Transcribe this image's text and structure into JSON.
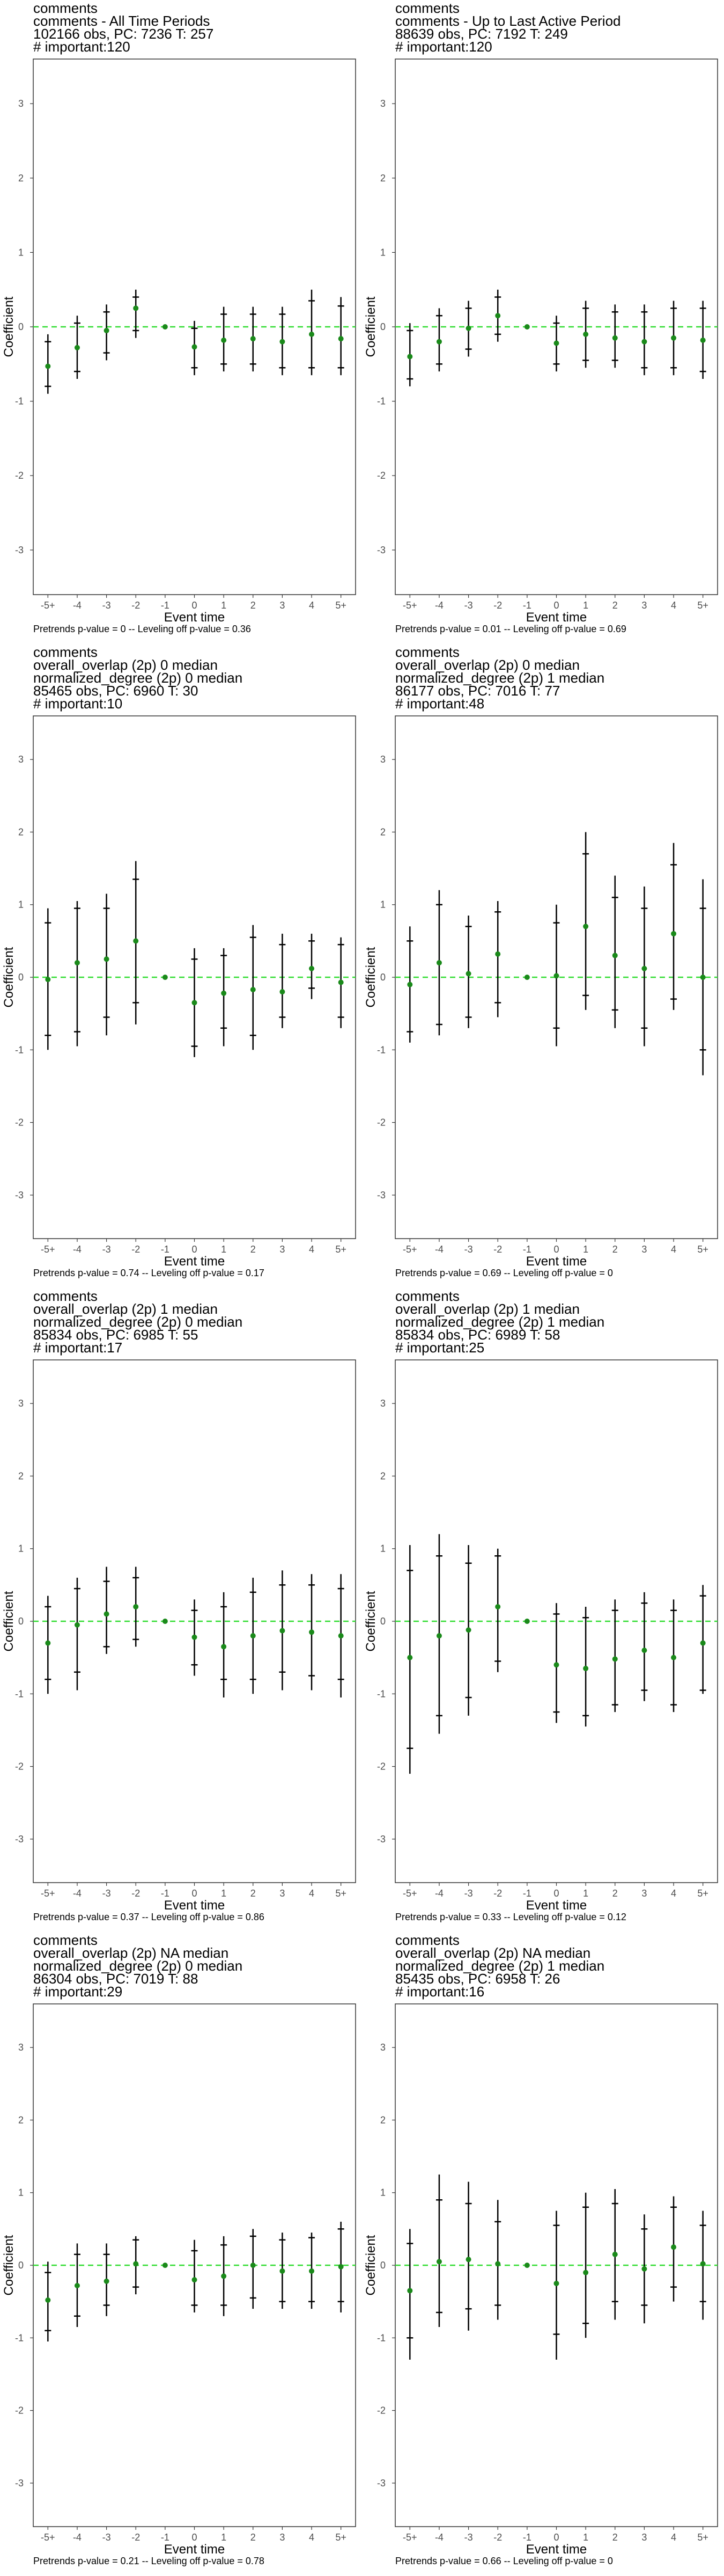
{
  "colors": {
    "point": "#1a8a1a",
    "zero_line": "#33dd33",
    "error_bar": "#000000",
    "panel_border": "#333333"
  },
  "chart_data": [
    {
      "type": "scatter",
      "title_lines": [
        "comments",
        "comments - All Time Periods",
        "102166 obs, PC: 7236 T: 257",
        "# important:120"
      ],
      "xlabel": "Event time",
      "ylabel": "Coefficient",
      "categories": [
        "-5+",
        "-4",
        "-3",
        "-2",
        "-1",
        "0",
        "1",
        "2",
        "3",
        "4",
        "5+"
      ],
      "yticks": [
        -3,
        -2,
        -1,
        0,
        1,
        2,
        3
      ],
      "ylim": [
        -3.6,
        3.6
      ],
      "reference_line": 0,
      "estimates": [
        -0.53,
        -0.28,
        -0.05,
        0.25,
        0.0,
        -0.27,
        -0.18,
        -0.16,
        -0.2,
        -0.1,
        -0.16
      ],
      "ci95_low": [
        -0.9,
        -0.7,
        -0.45,
        -0.15,
        0.0,
        -0.65,
        -0.6,
        -0.6,
        -0.65,
        -0.65,
        -0.65
      ],
      "ci95_high": [
        -0.1,
        0.15,
        0.3,
        0.5,
        0.0,
        0.08,
        0.27,
        0.27,
        0.27,
        0.5,
        0.4
      ],
      "ci90_low": [
        -0.8,
        -0.6,
        -0.35,
        -0.05,
        0.0,
        -0.55,
        -0.5,
        -0.5,
        -0.55,
        -0.55,
        -0.55
      ],
      "ci90_high": [
        -0.2,
        0.05,
        0.2,
        0.4,
        0.0,
        -0.02,
        0.17,
        0.17,
        0.17,
        0.35,
        0.28
      ],
      "caption": "Pretrends p-value = 0 -- Leveling off p-value = 0.36"
    },
    {
      "type": "scatter",
      "title_lines": [
        "comments",
        "comments - Up to Last Active Period",
        "88639 obs, PC: 7192 T: 249",
        "# important:120"
      ],
      "xlabel": "Event time",
      "ylabel": "Coefficient",
      "categories": [
        "-5+",
        "-4",
        "-3",
        "-2",
        "-1",
        "0",
        "1",
        "2",
        "3",
        "4",
        "5+"
      ],
      "yticks": [
        -3,
        -2,
        -1,
        0,
        1,
        2,
        3
      ],
      "ylim": [
        -3.6,
        3.6
      ],
      "reference_line": 0,
      "estimates": [
        -0.4,
        -0.2,
        -0.02,
        0.15,
        0.0,
        -0.22,
        -0.1,
        -0.15,
        -0.2,
        -0.15,
        -0.18
      ],
      "ci95_low": [
        -0.8,
        -0.6,
        -0.4,
        -0.2,
        0.0,
        -0.6,
        -0.55,
        -0.55,
        -0.65,
        -0.65,
        -0.7
      ],
      "ci95_high": [
        0.05,
        0.25,
        0.35,
        0.5,
        0.0,
        0.15,
        0.35,
        0.3,
        0.3,
        0.35,
        0.35
      ],
      "ci90_low": [
        -0.7,
        -0.5,
        -0.3,
        -0.1,
        0.0,
        -0.5,
        -0.45,
        -0.45,
        -0.55,
        -0.55,
        -0.6
      ],
      "ci90_high": [
        -0.05,
        0.15,
        0.25,
        0.4,
        0.0,
        0.05,
        0.25,
        0.2,
        0.2,
        0.25,
        0.25
      ],
      "caption": "Pretrends p-value = 0.01 -- Leveling off p-value = 0.69"
    },
    {
      "type": "scatter",
      "title_lines": [
        "comments",
        "overall_overlap (2p) 0 median",
        "normalized_degree (2p) 0 median",
        "85465 obs, PC: 6960 T: 30",
        "# important:10"
      ],
      "xlabel": "Event time",
      "ylabel": "Coefficient",
      "categories": [
        "-5+",
        "-4",
        "-3",
        "-2",
        "-1",
        "0",
        "1",
        "2",
        "3",
        "4",
        "5+"
      ],
      "yticks": [
        -3,
        -2,
        -1,
        0,
        1,
        2,
        3
      ],
      "ylim": [
        -3.6,
        3.6
      ],
      "reference_line": 0,
      "estimates": [
        -0.03,
        0.2,
        0.25,
        0.5,
        0.0,
        -0.35,
        -0.22,
        -0.17,
        -0.2,
        0.12,
        -0.07
      ],
      "ci95_low": [
        -1.0,
        -0.95,
        -0.8,
        -0.65,
        0.0,
        -1.1,
        -0.95,
        -1.0,
        -0.7,
        -0.3,
        -0.7
      ],
      "ci95_high": [
        0.95,
        1.05,
        1.15,
        1.6,
        0.0,
        0.4,
        0.4,
        0.72,
        0.6,
        0.6,
        0.55
      ],
      "ci90_low": [
        -0.8,
        -0.75,
        -0.55,
        -0.35,
        0.0,
        -0.95,
        -0.7,
        -0.8,
        -0.55,
        -0.15,
        -0.55
      ],
      "ci90_high": [
        0.75,
        0.95,
        0.95,
        1.35,
        0.0,
        0.25,
        0.3,
        0.55,
        0.45,
        0.5,
        0.45
      ],
      "caption": "Pretrends p-value = 0.74 -- Leveling off p-value = 0.17"
    },
    {
      "type": "scatter",
      "title_lines": [
        "comments",
        "overall_overlap (2p) 0 median",
        "normalized_degree (2p) 1 median",
        "86177 obs, PC: 7016 T: 77",
        "# important:48"
      ],
      "xlabel": "Event time",
      "ylabel": "Coefficient",
      "categories": [
        "-5+",
        "-4",
        "-3",
        "-2",
        "-1",
        "0",
        "1",
        "2",
        "3",
        "4",
        "5+"
      ],
      "yticks": [
        -3,
        -2,
        -1,
        0,
        1,
        2,
        3
      ],
      "ylim": [
        -3.6,
        3.6
      ],
      "reference_line": 0,
      "estimates": [
        -0.1,
        0.2,
        0.05,
        0.32,
        0.0,
        0.02,
        0.7,
        0.3,
        0.12,
        0.6,
        0.0
      ],
      "ci95_low": [
        -0.9,
        -0.8,
        -0.7,
        -0.55,
        0.0,
        -0.95,
        -0.45,
        -0.7,
        -0.95,
        -0.45,
        -1.35
      ],
      "ci95_high": [
        0.7,
        1.2,
        0.85,
        1.05,
        0.0,
        1.0,
        2.0,
        1.4,
        1.25,
        1.85,
        1.35
      ],
      "ci90_low": [
        -0.75,
        -0.65,
        -0.55,
        -0.35,
        0.0,
        -0.7,
        -0.25,
        -0.45,
        -0.7,
        -0.3,
        -1.0
      ],
      "ci90_high": [
        0.5,
        1.0,
        0.7,
        0.9,
        0.0,
        0.75,
        1.7,
        1.1,
        0.95,
        1.55,
        0.95
      ],
      "caption": "Pretrends p-value = 0.69 -- Leveling off p-value = 0"
    },
    {
      "type": "scatter",
      "title_lines": [
        "comments",
        "overall_overlap (2p) 1 median",
        "normalized_degree (2p) 0 median",
        "85834 obs, PC: 6985 T: 55",
        "# important:17"
      ],
      "xlabel": "Event time",
      "ylabel": "Coefficient",
      "categories": [
        "-5+",
        "-4",
        "-3",
        "-2",
        "-1",
        "0",
        "1",
        "2",
        "3",
        "4",
        "5+"
      ],
      "yticks": [
        -3,
        -2,
        -1,
        0,
        1,
        2,
        3
      ],
      "ylim": [
        -3.6,
        3.6
      ],
      "reference_line": 0,
      "estimates": [
        -0.3,
        -0.05,
        0.1,
        0.2,
        0.0,
        -0.22,
        -0.35,
        -0.2,
        -0.13,
        -0.15,
        -0.2
      ],
      "ci95_low": [
        -1.0,
        -0.95,
        -0.45,
        -0.35,
        0.0,
        -0.75,
        -1.05,
        -1.0,
        -0.95,
        -0.95,
        -1.05
      ],
      "ci95_high": [
        0.35,
        0.6,
        0.75,
        0.75,
        0.0,
        0.3,
        0.4,
        0.6,
        0.7,
        0.65,
        0.65
      ],
      "ci90_low": [
        -0.8,
        -0.7,
        -0.35,
        -0.25,
        0.0,
        -0.6,
        -0.8,
        -0.8,
        -0.7,
        -0.75,
        -0.8
      ],
      "ci90_high": [
        0.2,
        0.45,
        0.55,
        0.6,
        0.0,
        0.15,
        0.2,
        0.4,
        0.5,
        0.5,
        0.45
      ],
      "caption": "Pretrends p-value = 0.37 -- Leveling off p-value = 0.86"
    },
    {
      "type": "scatter",
      "title_lines": [
        "comments",
        "overall_overlap (2p) 1 median",
        "normalized_degree (2p) 1 median",
        "85834 obs, PC: 6989 T: 58",
        "# important:25"
      ],
      "xlabel": "Event time",
      "ylabel": "Coefficient",
      "categories": [
        "-5+",
        "-4",
        "-3",
        "-2",
        "-1",
        "0",
        "1",
        "2",
        "3",
        "4",
        "5+"
      ],
      "yticks": [
        -3,
        -2,
        -1,
        0,
        1,
        2,
        3
      ],
      "ylim": [
        -3.6,
        3.6
      ],
      "reference_line": 0,
      "estimates": [
        -0.5,
        -0.2,
        -0.12,
        0.2,
        0.0,
        -0.6,
        -0.65,
        -0.52,
        -0.4,
        -0.5,
        -0.3
      ],
      "ci95_low": [
        -2.1,
        -1.55,
        -1.3,
        -0.7,
        0.0,
        -1.4,
        -1.45,
        -1.25,
        -1.1,
        -1.25,
        -1.0
      ],
      "ci95_high": [
        1.05,
        1.2,
        1.05,
        1.0,
        0.0,
        0.25,
        0.2,
        0.3,
        0.4,
        0.3,
        0.5
      ],
      "ci90_low": [
        -1.75,
        -1.3,
        -1.05,
        -0.55,
        0.0,
        -1.25,
        -1.3,
        -1.15,
        -0.95,
        -1.15,
        -0.95
      ],
      "ci90_high": [
        0.7,
        0.9,
        0.8,
        0.9,
        0.0,
        0.1,
        0.05,
        0.15,
        0.25,
        0.15,
        0.35
      ],
      "caption": "Pretrends p-value = 0.33 -- Leveling off p-value = 0.12"
    },
    {
      "type": "scatter",
      "title_lines": [
        "comments",
        "overall_overlap (2p) NA median",
        "normalized_degree (2p) 0 median",
        "86304 obs, PC: 7019 T: 88",
        "# important:29"
      ],
      "xlabel": "Event time",
      "ylabel": "Coefficient",
      "categories": [
        "-5+",
        "-4",
        "-3",
        "-2",
        "-1",
        "0",
        "1",
        "2",
        "3",
        "4",
        "5+"
      ],
      "yticks": [
        -3,
        -2,
        -1,
        0,
        1,
        2,
        3
      ],
      "ylim": [
        -3.6,
        3.6
      ],
      "reference_line": 0,
      "estimates": [
        -0.48,
        -0.28,
        -0.22,
        0.02,
        0.0,
        -0.2,
        -0.15,
        0.0,
        -0.08,
        -0.08,
        -0.02
      ],
      "ci95_low": [
        -1.05,
        -0.85,
        -0.7,
        -0.4,
        0.0,
        -0.65,
        -0.7,
        -0.6,
        -0.6,
        -0.6,
        -0.65
      ],
      "ci95_high": [
        0.05,
        0.3,
        0.3,
        0.4,
        0.0,
        0.35,
        0.4,
        0.5,
        0.45,
        0.45,
        0.6
      ],
      "ci90_low": [
        -0.9,
        -0.7,
        -0.55,
        -0.3,
        0.0,
        -0.55,
        -0.55,
        -0.45,
        -0.5,
        -0.5,
        -0.5
      ],
      "ci90_high": [
        -0.1,
        0.15,
        0.15,
        0.35,
        0.0,
        0.2,
        0.28,
        0.4,
        0.35,
        0.38,
        0.5
      ],
      "caption": "Pretrends p-value = 0.21 -- Leveling off p-value = 0.78"
    },
    {
      "type": "scatter",
      "title_lines": [
        "comments",
        "overall_overlap (2p) NA median",
        "normalized_degree (2p) 1 median",
        "85435 obs, PC: 6958 T: 26",
        "# important:16"
      ],
      "xlabel": "Event time",
      "ylabel": "Coefficient",
      "categories": [
        "-5+",
        "-4",
        "-3",
        "-2",
        "-1",
        "0",
        "1",
        "2",
        "3",
        "4",
        "5+"
      ],
      "yticks": [
        -3,
        -2,
        -1,
        0,
        1,
        2,
        3
      ],
      "ylim": [
        -3.6,
        3.6
      ],
      "reference_line": 0,
      "estimates": [
        -0.35,
        0.05,
        0.08,
        0.02,
        0.0,
        -0.25,
        -0.1,
        0.15,
        -0.05,
        0.25,
        0.02
      ],
      "ci95_low": [
        -1.3,
        -0.85,
        -0.9,
        -0.75,
        0.0,
        -1.3,
        -1.0,
        -0.75,
        -0.8,
        -0.5,
        -0.75
      ],
      "ci95_high": [
        0.5,
        1.25,
        1.15,
        0.9,
        0.0,
        0.75,
        1.0,
        1.05,
        0.7,
        0.95,
        0.75
      ],
      "ci90_low": [
        -1.0,
        -0.65,
        -0.6,
        -0.55,
        0.0,
        -0.95,
        -0.8,
        -0.5,
        -0.55,
        -0.3,
        -0.5
      ],
      "ci90_high": [
        0.3,
        0.9,
        0.85,
        0.6,
        0.0,
        0.55,
        0.8,
        0.85,
        0.5,
        0.8,
        0.55
      ],
      "caption": "Pretrends p-value = 0.66 -- Leveling off p-value = 0"
    }
  ]
}
